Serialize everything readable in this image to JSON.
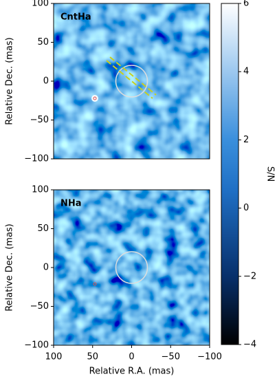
{
  "chart_data": [
    {
      "type": "image",
      "title": "CntHa",
      "ylabel": "Relative Dec. (mas)",
      "xlim": [
        100,
        -100
      ],
      "ylim": [
        -100,
        100
      ],
      "yticks": [
        {
          "value": -100,
          "label": "−100"
        },
        {
          "value": -50,
          "label": "−50"
        },
        0,
        50,
        100
      ]
    },
    {
      "type": "image",
      "title": "NHa",
      "ylabel": "Relative Dec. (mas)",
      "xlabel": "Relative R.A. (mas)",
      "xlim": [
        100,
        -100
      ],
      "ylim": [
        -100,
        100
      ],
      "xticks": [
        100,
        50,
        0,
        {
          "value": -50,
          "label": "−50"
        },
        {
          "value": -100,
          "label": "−100"
        }
      ],
      "yticks": [
        {
          "value": -100,
          "label": "−100"
        },
        {
          "value": -50,
          "label": "−50"
        },
        0,
        50,
        100
      ]
    },
    {
      "type": "colorbar",
      "ylabel": "S/N",
      "ylim": [
        -4,
        6
      ],
      "yticks": [
        {
          "value": -4,
          "label": "−4"
        },
        {
          "value": -2,
          "label": "−2"
        },
        0,
        2,
        4,
        6
      ]
    }
  ]
}
